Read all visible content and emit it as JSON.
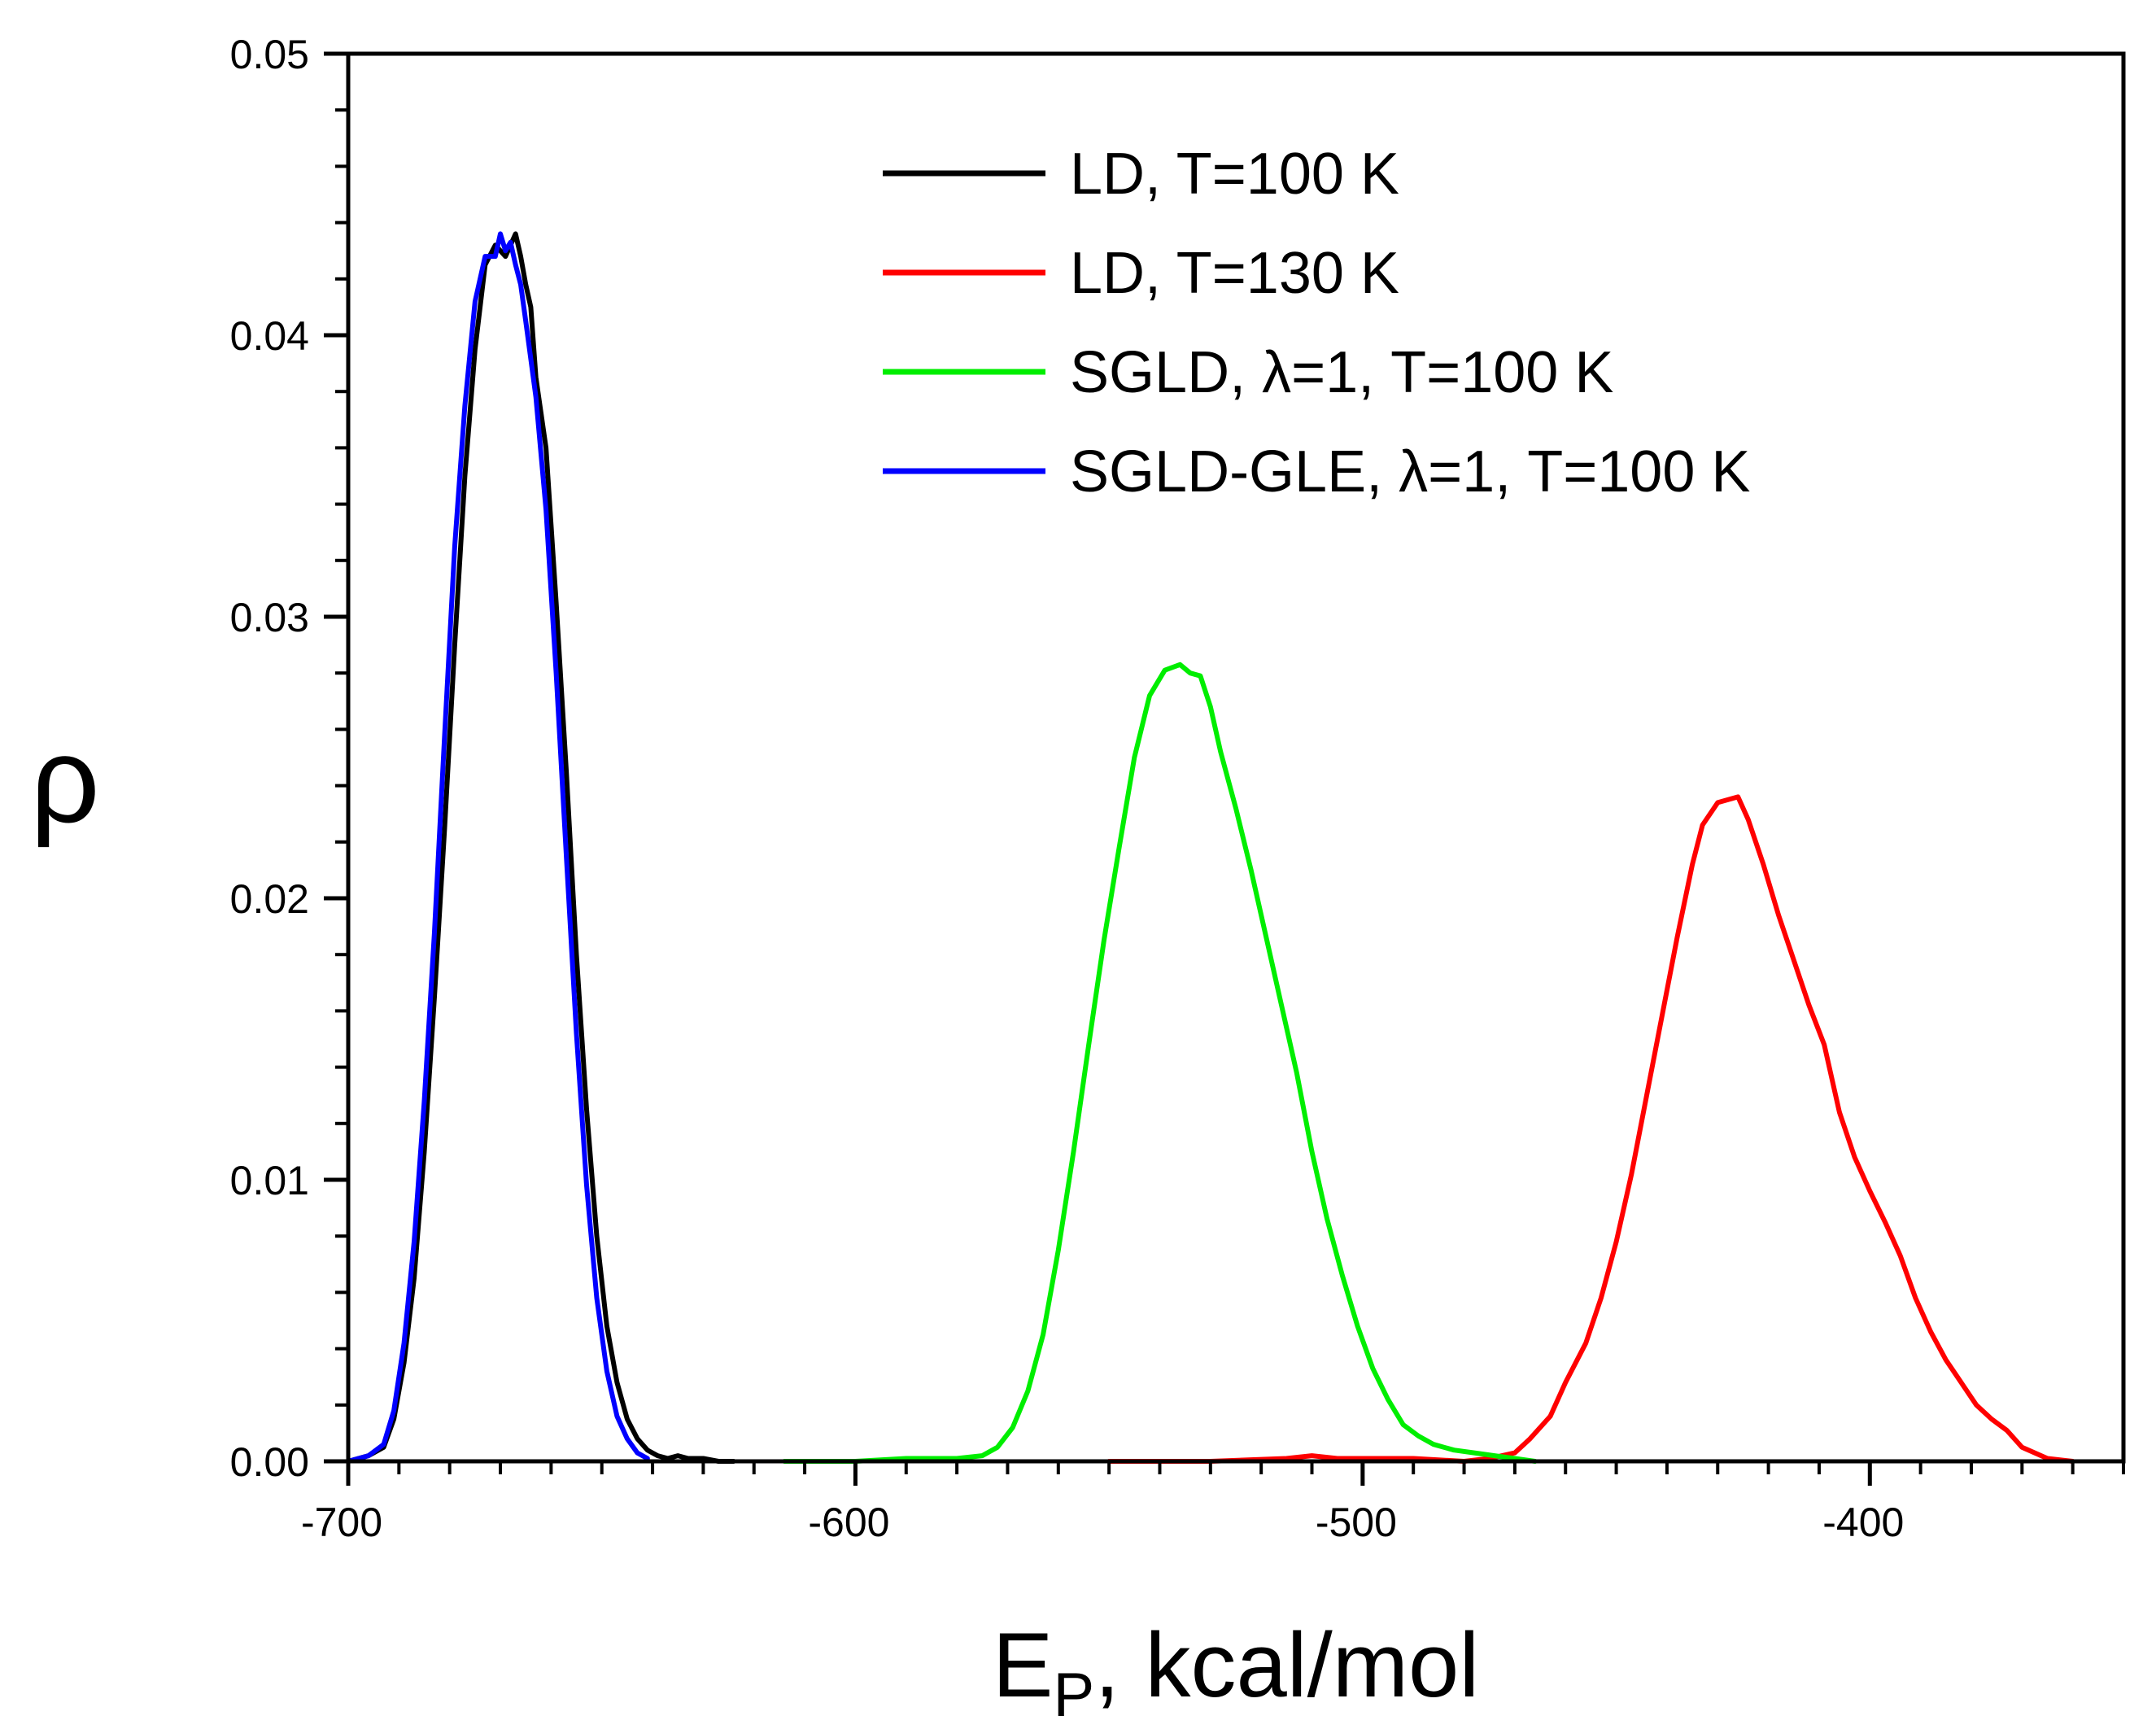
{
  "chart_data": {
    "type": "line",
    "title": "",
    "xlabel_main": "E",
    "xlabel_sub": "P",
    "xlabel_rest": ", kcal/mol",
    "ylabel": "ρ",
    "xlim": [
      -700,
      -350
    ],
    "ylim": [
      0,
      0.05
    ],
    "x_ticks": [
      -700,
      -600,
      -500,
      -400
    ],
    "x_tick_labels": [
      "-700",
      "-600",
      "-500",
      "-400"
    ],
    "x_minor_step": 10,
    "y_ticks": [
      0,
      0.01,
      0.02,
      0.03,
      0.04,
      0.05
    ],
    "y_tick_labels": [
      "0.00",
      "0.01",
      "0.02",
      "0.03",
      "0.04",
      "0.05"
    ],
    "y_minor_step": 0.002,
    "legend_position": "top-right",
    "series": [
      {
        "name": "LD, T=100 K",
        "label_pre": "LD, T=100 K",
        "label_post": "",
        "color": "#000000",
        "x": [
          -700,
          -696,
          -693,
          -691,
          -689,
          -687,
          -685,
          -683,
          -681,
          -679,
          -677,
          -675,
          -673,
          -671,
          -669,
          -667,
          -666,
          -665,
          -664,
          -663,
          -661,
          -659,
          -657,
          -655,
          -653,
          -651,
          -649,
          -647,
          -645,
          -643,
          -641,
          -639,
          -637,
          -635,
          -633,
          -630,
          -627,
          -624
        ],
        "values": [
          0.0,
          0.0002,
          0.0005,
          0.0015,
          0.0035,
          0.0065,
          0.011,
          0.0165,
          0.0225,
          0.029,
          0.035,
          0.0395,
          0.0425,
          0.0432,
          0.0428,
          0.0436,
          0.0428,
          0.0418,
          0.041,
          0.0385,
          0.036,
          0.0305,
          0.0245,
          0.018,
          0.0125,
          0.008,
          0.0048,
          0.0028,
          0.0015,
          0.0008,
          0.0004,
          0.0002,
          0.0001,
          0.0002,
          0.0001,
          0.0001,
          0.0,
          0.0
        ]
      },
      {
        "name": "LD, T=130 K",
        "label_pre": "LD, T=130 K",
        "label_post": "",
        "color": "#ff0000",
        "x": [
          -550,
          -530,
          -515,
          -510,
          -505,
          -490,
          -480,
          -475,
          -470,
          -467,
          -463,
          -460,
          -456,
          -453,
          -450,
          -447,
          -444,
          -441,
          -438,
          -435,
          -433,
          -430,
          -428,
          -426,
          -424,
          -421,
          -418,
          -415,
          -412,
          -409,
          -406,
          -403,
          -400,
          -397,
          -394,
          -391,
          -388,
          -385,
          -382,
          -379,
          -376,
          -373,
          -370,
          -365,
          -360
        ],
        "values": [
          0.0,
          0.0,
          0.0001,
          0.0002,
          0.0001,
          0.0001,
          0.0,
          0.0001,
          0.0003,
          0.0008,
          0.0016,
          0.0028,
          0.0042,
          0.0058,
          0.0078,
          0.0102,
          0.013,
          0.0158,
          0.0186,
          0.0212,
          0.0226,
          0.0234,
          0.0235,
          0.0236,
          0.0228,
          0.0212,
          0.0194,
          0.0178,
          0.0162,
          0.0148,
          0.0124,
          0.0108,
          0.0096,
          0.0085,
          0.0073,
          0.0058,
          0.0046,
          0.0036,
          0.0028,
          0.002,
          0.0015,
          0.0011,
          0.0005,
          0.0001,
          0.0
        ]
      },
      {
        "name": "SGLD, λ=1, T=100 K",
        "label_pre": "SGLD, ",
        "label_post": "=1, T=100 K",
        "color": "#00ee00",
        "x": [
          -614,
          -600,
          -590,
          -585,
          -580,
          -575,
          -572,
          -569,
          -566,
          -563,
          -560,
          -557,
          -554,
          -551,
          -548,
          -545,
          -542,
          -539,
          -536,
          -534,
          -532,
          -530,
          -528,
          -525,
          -522,
          -519,
          -516,
          -513,
          -510,
          -507,
          -504,
          -501,
          -498,
          -495,
          -492,
          -489,
          -486,
          -482,
          -478,
          -474,
          -470,
          -466
        ],
        "values": [
          0.0,
          0.0,
          0.0001,
          0.0001,
          0.0001,
          0.0002,
          0.0005,
          0.0012,
          0.0025,
          0.0045,
          0.0075,
          0.011,
          0.0148,
          0.0185,
          0.0218,
          0.025,
          0.0272,
          0.0281,
          0.0283,
          0.028,
          0.0279,
          0.0268,
          0.0252,
          0.0232,
          0.021,
          0.0186,
          0.0162,
          0.0138,
          0.011,
          0.0086,
          0.0066,
          0.0048,
          0.0033,
          0.0022,
          0.0013,
          0.0009,
          0.0006,
          0.0004,
          0.0003,
          0.0002,
          0.0001,
          0.0
        ]
      },
      {
        "name": "SGLD-GLE, λ=1, T=100 K",
        "label_pre": "SGLD-GLE, ",
        "label_post": "=1, T=100 K",
        "color": "#0000ff",
        "x": [
          -700,
          -696,
          -693,
          -691,
          -689,
          -687,
          -685,
          -683,
          -681,
          -679,
          -677,
          -675,
          -673,
          -671,
          -670,
          -669,
          -668,
          -667,
          -666,
          -665,
          -663,
          -661,
          -659,
          -657,
          -655,
          -653,
          -651,
          -649,
          -647,
          -645,
          -643,
          -641
        ],
        "values": [
          0.0,
          0.0002,
          0.0006,
          0.0018,
          0.0042,
          0.0078,
          0.0128,
          0.0188,
          0.0258,
          0.0325,
          0.0375,
          0.0412,
          0.0428,
          0.0428,
          0.0436,
          0.043,
          0.0433,
          0.0425,
          0.0418,
          0.0405,
          0.0378,
          0.0338,
          0.028,
          0.0215,
          0.0152,
          0.0098,
          0.0058,
          0.0032,
          0.0016,
          0.0008,
          0.0003,
          0.0001
        ]
      }
    ]
  }
}
